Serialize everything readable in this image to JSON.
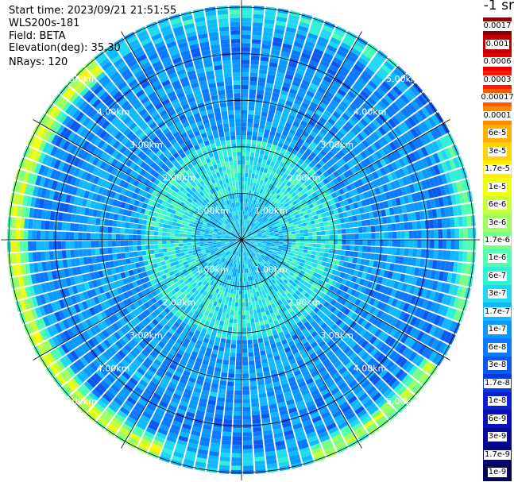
{
  "info": {
    "start_time": "Start time: 2023/09/21 21:51:55",
    "device": "WLS200s-181",
    "field": "Field: BETA",
    "elevation": "Elevation(deg): 35.30",
    "nrays": "NRays: 120"
  },
  "colorbar": {
    "unit_title": "-1 sr",
    "labels": [
      "0.0017",
      "0.001",
      "0.0006",
      "0.0003",
      "0.00017",
      "0.0001",
      "6e-5",
      "3e-5",
      "1.7e-5",
      "1e-5",
      "6e-6",
      "3e-6",
      "1.7e-6",
      "1e-6",
      "6e-7",
      "3e-7",
      "1.7e-7",
      "1e-7",
      "6e-8",
      "3e-8",
      "1.7e-8",
      "1e-8",
      "6e-9",
      "3e-9",
      "1.7e-9",
      "1e-9"
    ],
    "colors": [
      "#8b0000",
      "#c00000",
      "#e60000",
      "#ff1a00",
      "#ff5a00",
      "#ff8c00",
      "#ffb000",
      "#ffd200",
      "#ffee00",
      "#f0ff10",
      "#c8ff35",
      "#a0ff60",
      "#78ff88",
      "#50ffb0",
      "#30f0d8",
      "#20d8f0",
      "#10b8ff",
      "#0a98ff",
      "#0a78ff",
      "#0a58f0",
      "#0a38e0",
      "#0a20d0",
      "#0a10b8",
      "#080898",
      "#060678",
      "#04045a"
    ]
  },
  "chart_data": {
    "type": "heatmap",
    "projection": "polar (PPI scan)",
    "rays": 120,
    "range_rings_km": [
      1,
      2,
      3,
      4,
      5
    ],
    "ring_labels": [
      "1.00km",
      "2.00km",
      "3.00km",
      "4.00km",
      "5.00km"
    ],
    "max_range_km": 5.1,
    "spoke_angles_deg": [
      0,
      30,
      60,
      90,
      120,
      150,
      180,
      210,
      240,
      270,
      300,
      330
    ],
    "field": "BETA",
    "colorscale": "log",
    "value_range": [
      1e-09,
      0.0017
    ],
    "typical_value_near_range": "1e-7",
    "typical_value_mid_range": "3e-8",
    "peak_band_range_km": [
      4.6,
      5.0
    ],
    "peak_band_value": "1.7e-5"
  }
}
